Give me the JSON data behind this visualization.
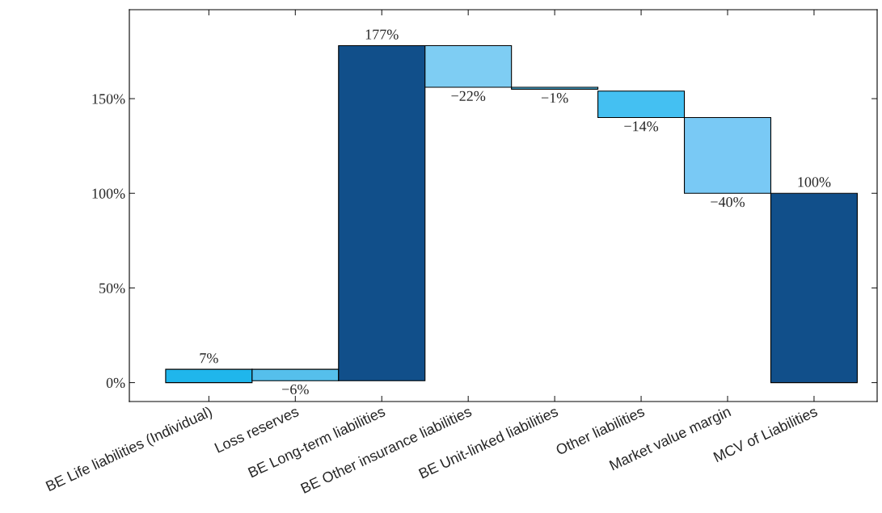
{
  "chart_data": {
    "type": "bar",
    "categories": [
      "BE Life liabilities (Individual)",
      "Loss reserves",
      "BE Long-term liabilities",
      "BE Other insurance liabilities",
      "BE Unit-linked liabilities",
      "Other liabilities",
      "Market value margin",
      "MCV of Liabilities"
    ],
    "values": [
      7,
      -6,
      177,
      -22,
      -1,
      -14,
      -40,
      100
    ],
    "base": [
      0,
      7,
      1,
      178,
      156,
      154,
      140,
      0
    ],
    "colors": [
      "#1fb6ec",
      "#55bfec",
      "#114f8a",
      "#7ecdf3",
      "#55bfec",
      "#44c0f2",
      "#79c9f5",
      "#114f8a"
    ],
    "value_labels": [
      "7%",
      "−6%",
      "177%",
      "−22%",
      "−1%",
      "−14%",
      "−40%",
      "100%"
    ],
    "ylim": [
      -10,
      197
    ],
    "yticks": [
      {
        "value": 0,
        "label": "0%"
      },
      {
        "value": 50,
        "label": "50%"
      },
      {
        "value": 100,
        "label": "100%"
      },
      {
        "value": 150,
        "label": "150%"
      }
    ],
    "grid": false
  }
}
